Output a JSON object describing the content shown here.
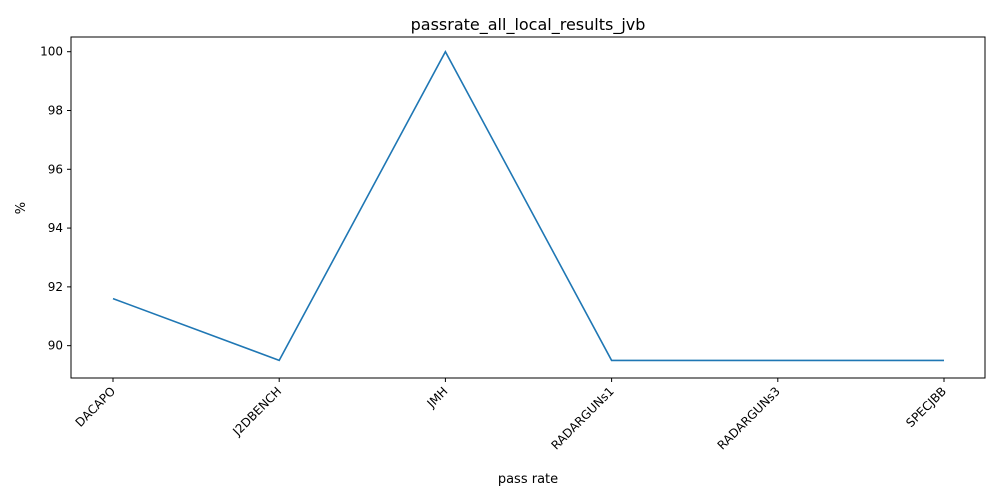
{
  "chart_data": {
    "type": "line",
    "title": "passrate_all_local_results_jvb",
    "xlabel": "pass rate",
    "ylabel": "%",
    "categories": [
      "DACAPO",
      "J2DBENCH",
      "JMH",
      "RADARGUNs1",
      "RADARGUNs3",
      "SPECJBB"
    ],
    "series": [
      {
        "values": [
          91.6,
          89.5,
          100.0,
          89.5,
          89.5,
          89.5
        ],
        "color": "#1f77b4"
      }
    ],
    "ylim": [
      88.9,
      100.5
    ],
    "yticks": [
      90,
      92,
      94,
      96,
      98,
      100
    ],
    "ytick_labels": [
      "90",
      "92",
      "94",
      "96",
      "98",
      "100"
    ],
    "grid": false,
    "legend": "none"
  }
}
